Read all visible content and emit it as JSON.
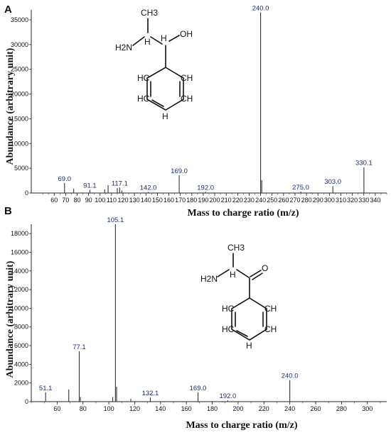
{
  "chart_data": [
    {
      "type": "bar",
      "panel": "A",
      "xlabel": "Mass to charge ratio (m/z)",
      "ylabel": "Abundance (arbitrary unit)",
      "xlim": [
        40,
        350
      ],
      "ylim": [
        0,
        37000
      ],
      "xticks": [
        60,
        70,
        80,
        90,
        100,
        110,
        120,
        130,
        140,
        150,
        160,
        170,
        180,
        190,
        200,
        210,
        220,
        230,
        240,
        250,
        260,
        270,
        280,
        290,
        300,
        310,
        320,
        330,
        340
      ],
      "yticks": [
        0,
        5000,
        10000,
        15000,
        20000,
        25000,
        30000,
        35000
      ],
      "peaks": [
        {
          "x": 69.0,
          "y": 2000,
          "label": "69.0"
        },
        {
          "x": 77.0,
          "y": 900,
          "label": ""
        },
        {
          "x": 91.1,
          "y": 650,
          "label": "91.1"
        },
        {
          "x": 104.0,
          "y": 700,
          "label": ""
        },
        {
          "x": 107.0,
          "y": 1600,
          "label": ""
        },
        {
          "x": 115.0,
          "y": 1000,
          "label": ""
        },
        {
          "x": 117.1,
          "y": 1100,
          "label": "117.1"
        },
        {
          "x": 119.0,
          "y": 500,
          "label": ""
        },
        {
          "x": 142.0,
          "y": 200,
          "label": "142.0"
        },
        {
          "x": 169.0,
          "y": 3600,
          "label": "169.0"
        },
        {
          "x": 192.0,
          "y": 250,
          "label": "192.0"
        },
        {
          "x": 240.0,
          "y": 36500,
          "label": "240.0"
        },
        {
          "x": 241.0,
          "y": 2600,
          "label": ""
        },
        {
          "x": 275.0,
          "y": 300,
          "label": "275.0"
        },
        {
          "x": 303.0,
          "y": 1400,
          "label": "303.0"
        },
        {
          "x": 330.1,
          "y": 5200,
          "label": "330.1"
        }
      ],
      "structure": {
        "atoms": [
          "CH3",
          "H2N",
          "H",
          "H",
          "OH",
          "HC",
          "CH",
          "HC",
          "CH",
          "H"
        ]
      }
    },
    {
      "type": "bar",
      "panel": "B",
      "xlabel": "Mass to charge ratio (m/z)",
      "ylabel": "Abundance (arbitrary unit)",
      "xlim": [
        40,
        315
      ],
      "ylim": [
        0,
        19000
      ],
      "xticks": [
        60,
        80,
        100,
        120,
        140,
        160,
        180,
        200,
        220,
        240,
        260,
        280,
        300
      ],
      "yticks": [
        0,
        2000,
        4000,
        6000,
        8000,
        10000,
        12000,
        14000,
        16000,
        18000
      ],
      "peaks": [
        {
          "x": 51.1,
          "y": 1000,
          "label": "51.1"
        },
        {
          "x": 69.0,
          "y": 1300,
          "label": ""
        },
        {
          "x": 77.1,
          "y": 5400,
          "label": "77.1"
        },
        {
          "x": 78.0,
          "y": 500,
          "label": ""
        },
        {
          "x": 103.0,
          "y": 500,
          "label": ""
        },
        {
          "x": 105.1,
          "y": 19000,
          "label": "105.1"
        },
        {
          "x": 106.0,
          "y": 1600,
          "label": ""
        },
        {
          "x": 117.0,
          "y": 300,
          "label": ""
        },
        {
          "x": 132.1,
          "y": 450,
          "label": "132.1"
        },
        {
          "x": 169.0,
          "y": 1000,
          "label": "169.0"
        },
        {
          "x": 192.0,
          "y": 150,
          "label": "192.0"
        },
        {
          "x": 240.0,
          "y": 2300,
          "label": "240.0"
        }
      ],
      "structure": {
        "atoms": [
          "CH3",
          "H2N",
          "H",
          "O",
          "HC",
          "CH",
          "HC",
          "CH",
          "H"
        ]
      }
    }
  ]
}
